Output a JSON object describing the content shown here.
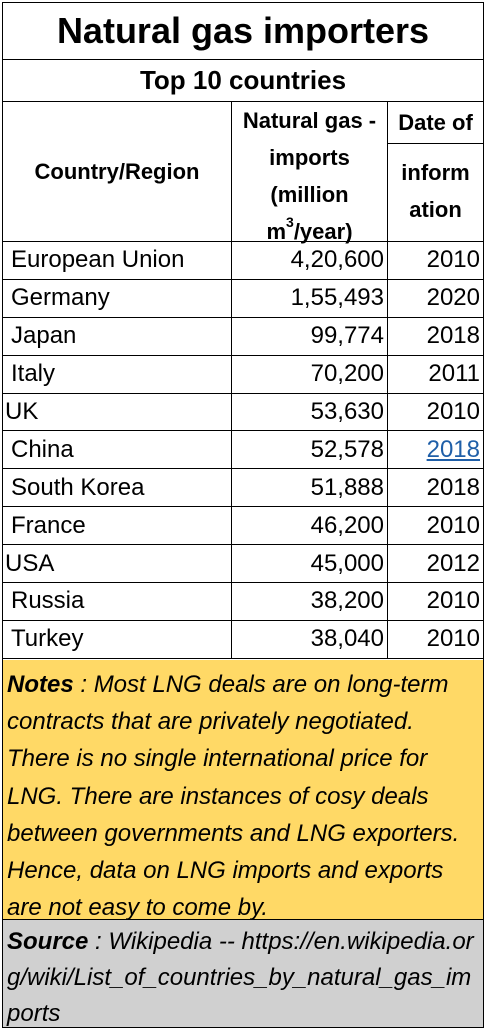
{
  "title": "Natural gas importers",
  "subtitle": "Top 10 countries",
  "headers": {
    "country": "Country/Region",
    "imports_lines": [
      "Natural gas -",
      "imports",
      "(million",
      "m",
      "3",
      "/year)"
    ],
    "date_top": "Date of",
    "date_lines": [
      "inform",
      "ation"
    ]
  },
  "chart_data": {
    "type": "table",
    "title": "Natural gas importers",
    "subtitle": "Top 10 countries",
    "columns": [
      "Country/Region",
      "Natural gas - imports (million m3/year)",
      "Date of information"
    ],
    "rows": [
      {
        "country": "European Union",
        "imports": "4,20,600",
        "date": "2010"
      },
      {
        "country": "Germany",
        "imports": "1,55,493",
        "date": "2020"
      },
      {
        "country": "Japan",
        "imports": "99,774",
        "date": "2018"
      },
      {
        "country": "Italy",
        "imports": "70,200",
        "date": "2011"
      },
      {
        "country": "UK",
        "imports": "53,630",
        "date": "2010"
      },
      {
        "country": "China",
        "imports": "52,578",
        "date": "2018"
      },
      {
        "country": "South Korea",
        "imports": "51,888",
        "date": "2018"
      },
      {
        "country": "France",
        "imports": "46,200",
        "date": "2010"
      },
      {
        "country": "USA",
        "imports": "45,000",
        "date": "2012"
      },
      {
        "country": "Russia",
        "imports": "38,200",
        "date": "2010"
      },
      {
        "country": "Turkey",
        "imports": "38,040",
        "date": "2010"
      }
    ]
  },
  "notes": {
    "label": "Notes",
    "text": " : Most LNG deals are on long-term contracts that are privately negotiated. There is no single international price for LNG. There are instances of cosy deals between governments and LNG exporters. Hence, data on LNG imports and exports are not easy to come by."
  },
  "source": {
    "label": "Source",
    "text": " : Wikipedia -- https://en.wikipedia.org/wiki/List_of_countries_by_natural_gas_imports"
  },
  "colors": {
    "notes_bg": "#ffd966",
    "source_bg": "#d0d0d0",
    "link": "#1f5fa8"
  }
}
